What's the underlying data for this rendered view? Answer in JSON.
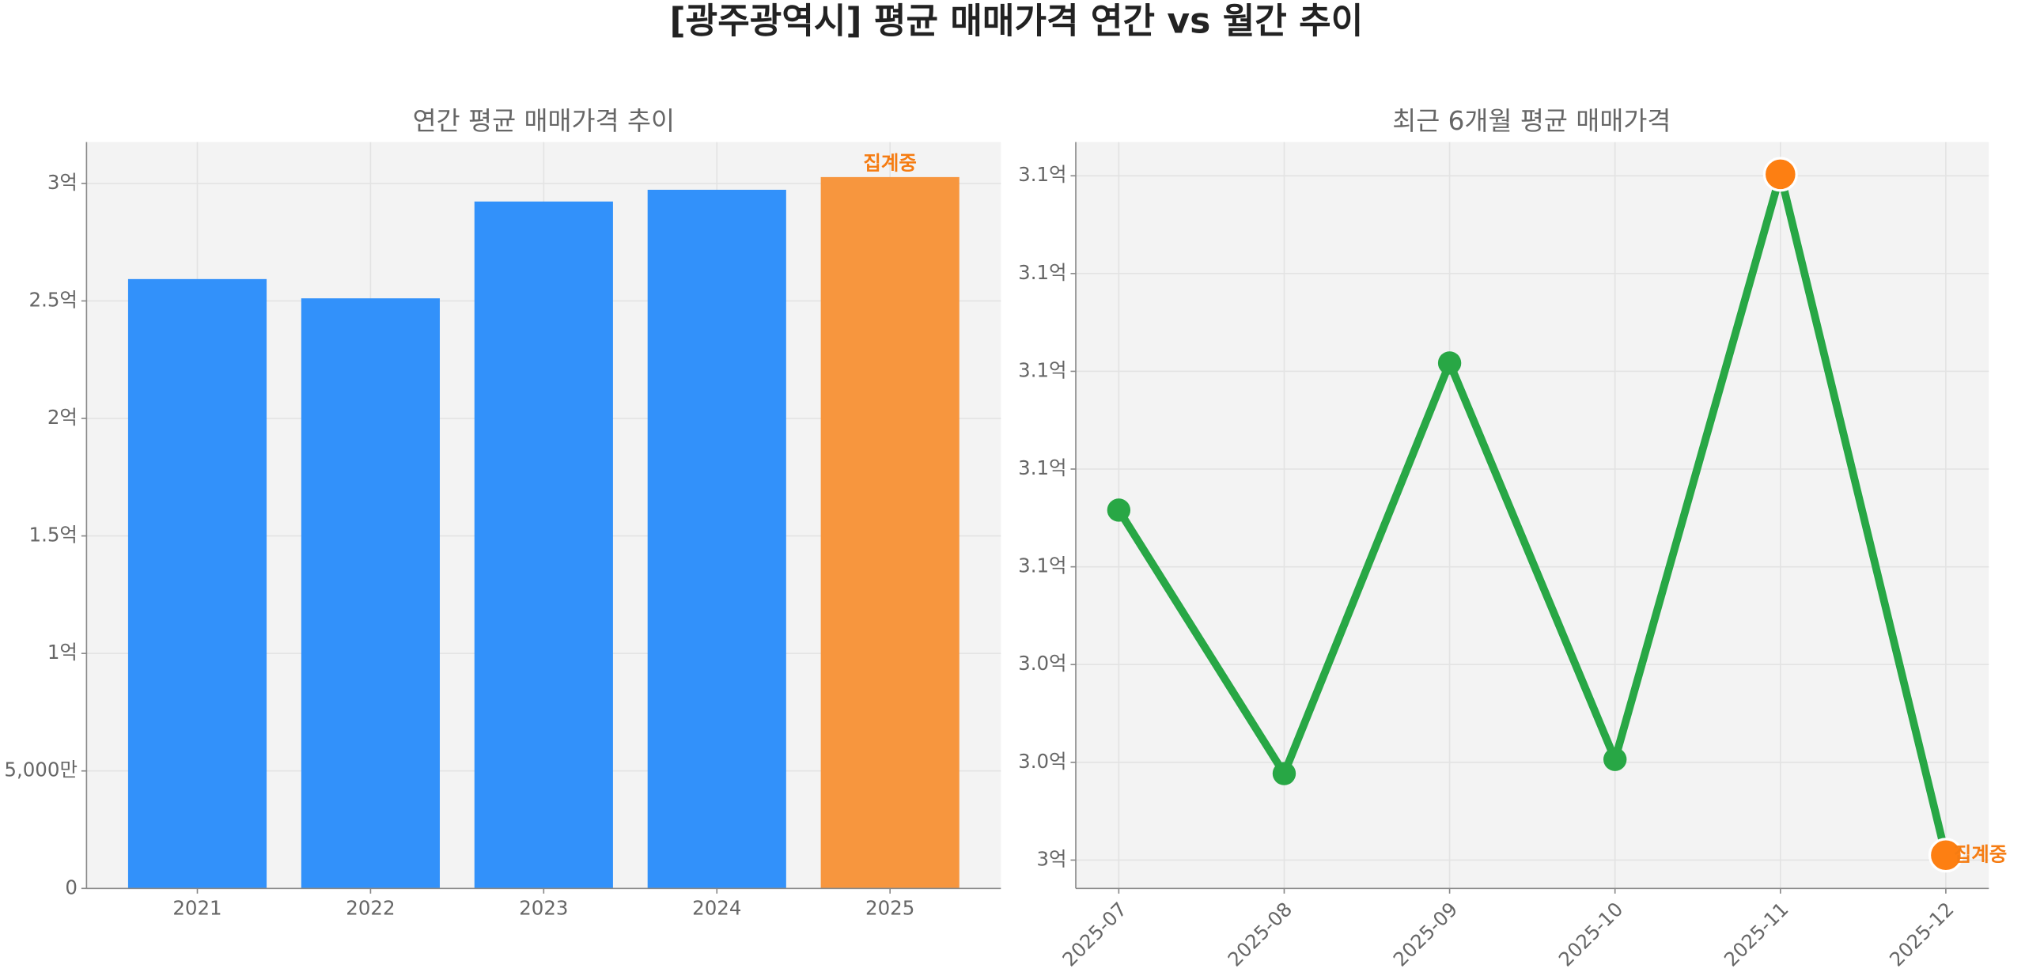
{
  "title": "[광주광역시] 평균 매매가격 연간 vs 월간 추이",
  "chart_data": [
    {
      "type": "bar",
      "title": "연간 평균 매매가격 추이",
      "categories": [
        "2021",
        "2022",
        "2023",
        "2024",
        "2025"
      ],
      "values": [
        259300000,
        251100000,
        292300000,
        297300000,
        302700000
      ],
      "colors": [
        "#3291fa",
        "#3291fa",
        "#3291fa",
        "#3291fa",
        "#f7963e"
      ],
      "annotation": "집계중",
      "annotation_color": "#f57c12",
      "ylim": [
        0,
        317600000
      ],
      "yticks": [
        0,
        {
          "value": 50000000,
          "label": "5,000만"
        },
        {
          "value": 100000000,
          "label": "1억"
        },
        {
          "value": 150000000,
          "label": "1.5억"
        },
        {
          "value": 200000000,
          "label": "2억"
        },
        {
          "value": 250000000,
          "label": "2.5억"
        },
        {
          "value": 300000000,
          "label": "3억"
        }
      ],
      "grid": true
    },
    {
      "type": "line",
      "title": "최근 6개월 평균 매매가격",
      "categories": [
        "2025-07",
        "2025-08",
        "2025-09",
        "2025-10",
        "2025-11",
        "2025-12"
      ],
      "values": [
        307160000,
        301770000,
        310170000,
        302060000,
        314030000,
        300100000
      ],
      "color": "#28a745",
      "point_colors": [
        "#28a745",
        "#28a745",
        "#28a745",
        "#28a745",
        "#fd7f12",
        "#fd7f12"
      ],
      "annotation": "집계중",
      "annotation_color": "#f57c12",
      "ylim": [
        299420000,
        314690000
      ],
      "yticks": [
        {
          "value": 300000000,
          "label": "3억"
        },
        {
          "value": 302000000,
          "label": "3.0억"
        },
        {
          "value": 304000000,
          "label": "3.0억"
        },
        {
          "value": 306000000,
          "label": "3.1억"
        },
        {
          "value": 308000000,
          "label": "3.1억"
        },
        {
          "value": 310000000,
          "label": "3.1억"
        },
        {
          "value": 312000000,
          "label": "3.1억"
        },
        {
          "value": 314000000,
          "label": "3.1억"
        }
      ],
      "grid": true
    }
  ]
}
